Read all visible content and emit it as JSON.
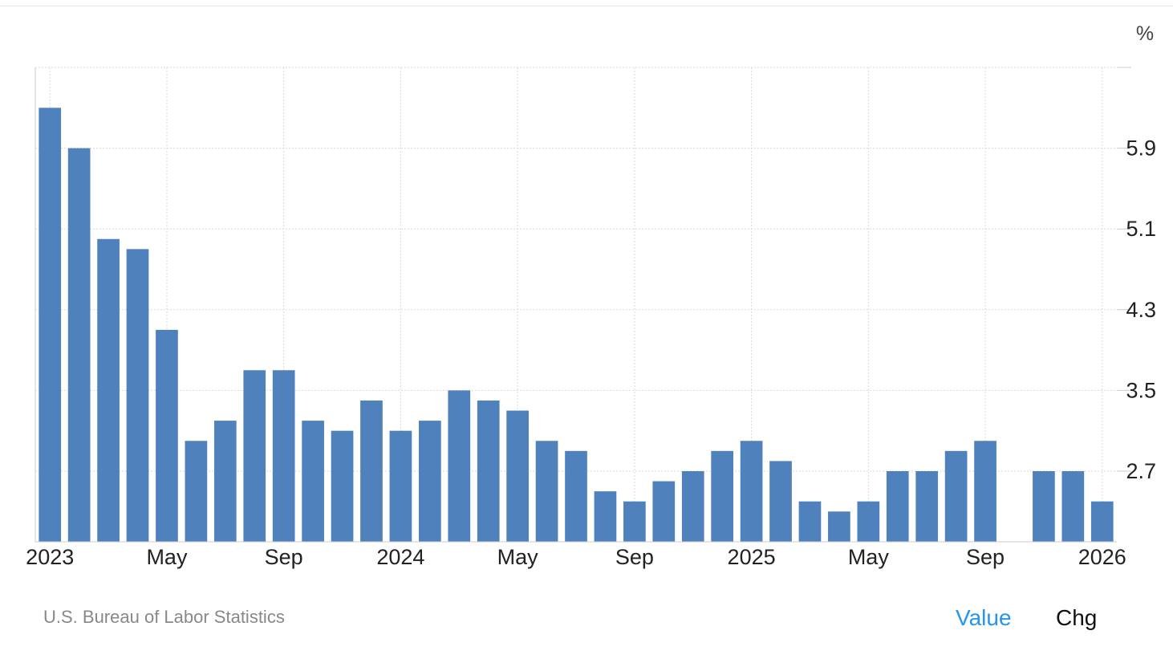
{
  "chart_data": {
    "type": "bar",
    "unit": "%",
    "x": [
      "2023-01",
      "2023-02",
      "2023-03",
      "2023-04",
      "2023-05",
      "2023-06",
      "2023-07",
      "2023-08",
      "2023-09",
      "2023-10",
      "2023-11",
      "2023-12",
      "2024-01",
      "2024-02",
      "2024-03",
      "2024-04",
      "2024-05",
      "2024-06",
      "2024-07",
      "2024-08",
      "2024-09",
      "2024-10",
      "2024-11",
      "2024-12",
      "2025-01",
      "2025-02",
      "2025-03",
      "2025-04",
      "2025-05",
      "2025-06",
      "2025-07",
      "2025-08",
      "2025-09",
      "2025-10",
      "2025-11",
      "2025-12",
      "2026-01"
    ],
    "values": [
      6.3,
      5.9,
      5.0,
      4.9,
      4.1,
      3.0,
      3.2,
      3.7,
      3.7,
      3.2,
      3.1,
      3.4,
      3.1,
      3.2,
      3.5,
      3.4,
      3.3,
      3.0,
      2.9,
      2.5,
      2.4,
      2.6,
      2.7,
      2.9,
      3.0,
      2.8,
      2.4,
      2.3,
      2.4,
      2.7,
      2.7,
      2.9,
      3.0,
      null,
      2.7,
      2.7,
      2.4
    ],
    "x_tick_labels": [
      {
        "label": "2023",
        "at": "2023-01"
      },
      {
        "label": "May",
        "at": "2023-05"
      },
      {
        "label": "Sep",
        "at": "2023-09"
      },
      {
        "label": "2024",
        "at": "2024-01"
      },
      {
        "label": "May",
        "at": "2024-05"
      },
      {
        "label": "Sep",
        "at": "2024-09"
      },
      {
        "label": "2025",
        "at": "2025-01"
      },
      {
        "label": "May",
        "at": "2025-05"
      },
      {
        "label": "Sep",
        "at": "2025-09"
      },
      {
        "label": "2026",
        "at": "2026-01"
      }
    ],
    "y_ticks": [
      "2.7",
      "3.5",
      "4.3",
      "5.1",
      "5.9"
    ],
    "ylim": [
      2.0,
      6.7
    ],
    "grid": true,
    "legend": "none",
    "colors": {
      "bar": "#4f81bd",
      "grid": "#d9d9d9",
      "axis": "#cccccc"
    }
  },
  "footer": {
    "source": "U.S. Bureau of Labor Statistics",
    "toggle_value": "Value",
    "toggle_chg": "Chg",
    "active_color": "#2196f3"
  }
}
